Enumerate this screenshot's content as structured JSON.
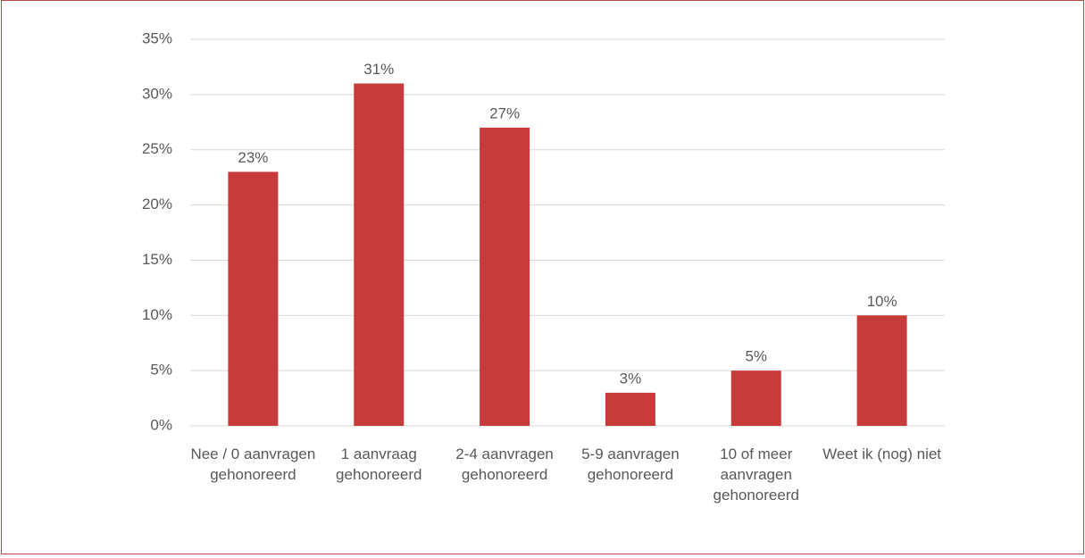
{
  "chart_data": {
    "type": "bar",
    "categories": [
      "Nee / 0 aanvragen gehonoreerd",
      "1 aanvraag gehonoreerd",
      "2-4 aanvragen gehonoreerd",
      "5-9 aanvragen gehonoreerd",
      "10 of meer aanvragen gehonoreerd",
      "Weet ik (nog) niet"
    ],
    "values": [
      23,
      31,
      27,
      3,
      5,
      10
    ],
    "value_labels": [
      "23%",
      "31%",
      "27%",
      "3%",
      "5%",
      "10%"
    ],
    "color": "#c83b3b",
    "ylim": [
      0,
      35
    ],
    "yticks": [
      {
        "value": 0,
        "label": "0%"
      },
      {
        "value": 5,
        "label": "5%"
      },
      {
        "value": 10,
        "label": "10%"
      },
      {
        "value": 15,
        "label": "15%"
      },
      {
        "value": 20,
        "label": "20%"
      },
      {
        "value": 25,
        "label": "25%"
      },
      {
        "value": 30,
        "label": "30%"
      },
      {
        "value": 35,
        "label": "35%"
      }
    ],
    "grid": true
  }
}
